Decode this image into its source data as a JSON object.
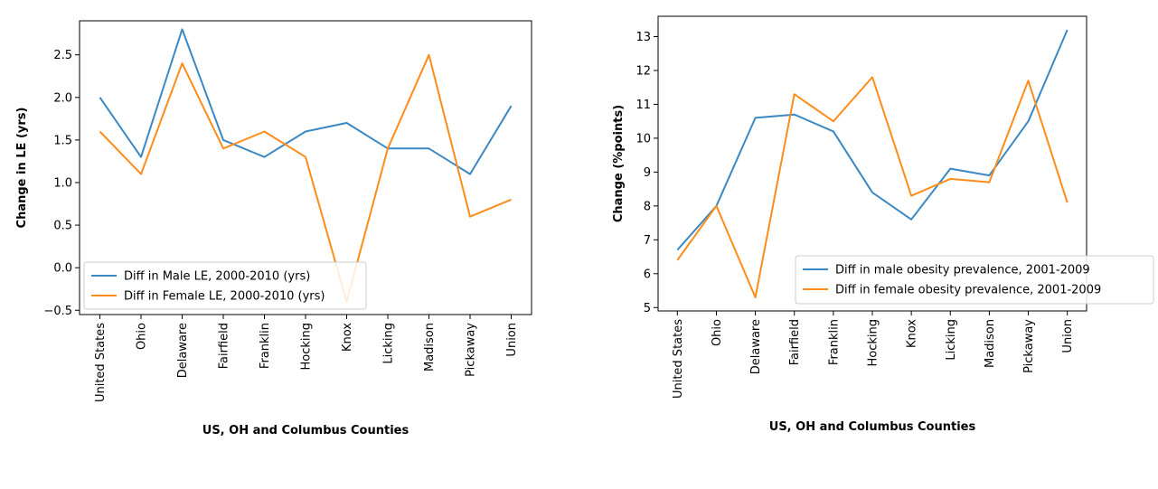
{
  "chart_data": [
    {
      "type": "line",
      "categories": [
        "United States",
        "Ohio",
        "Delaware",
        "Fairfield",
        "Franklin",
        "Hocking",
        "Knox",
        "Licking",
        "Madison",
        "Pickaway",
        "Union"
      ],
      "series": [
        {
          "name": "Diff in Male LE, 2000-2010 (yrs)",
          "color": "#3b88c3",
          "values": [
            2.0,
            1.3,
            2.8,
            1.5,
            1.3,
            1.6,
            1.7,
            1.4,
            1.4,
            1.1,
            1.9
          ]
        },
        {
          "name": "Diff in Female LE, 2000-2010 (yrs)",
          "color": "#ff8c1a",
          "values": [
            1.6,
            1.1,
            2.4,
            1.4,
            1.6,
            1.3,
            -0.4,
            1.4,
            2.5,
            0.6,
            0.8
          ]
        }
      ],
      "xlabel": "US, OH and Columbus Counties",
      "ylabel": "Change in LE (yrs)",
      "ylim": [
        -0.55,
        2.9
      ],
      "yticks": [
        -0.5,
        0.0,
        0.5,
        1.0,
        1.5,
        2.0,
        2.5
      ],
      "ytick_labels": [
        "−0.5",
        "0.0",
        "0.5",
        "1.0",
        "1.5",
        "2.0",
        "2.5"
      ],
      "grid": false,
      "legend": "lower-left"
    },
    {
      "type": "line",
      "categories": [
        "United States",
        "Ohio",
        "Delaware",
        "Fairfield",
        "Franklin",
        "Hocking",
        "Knox",
        "Licking",
        "Madison",
        "Pickaway",
        "Union"
      ],
      "series": [
        {
          "name": "Diff in male obesity prevalence, 2001-2009",
          "color": "#3b88c3",
          "values": [
            6.7,
            8.0,
            10.6,
            10.7,
            10.2,
            8.4,
            7.6,
            9.1,
            8.9,
            10.5,
            13.2
          ]
        },
        {
          "name": "Diff in female obesity prevalence, 2001-2009",
          "color": "#ff8c1a",
          "values": [
            6.4,
            8.0,
            5.3,
            11.3,
            10.5,
            11.8,
            8.3,
            8.8,
            8.7,
            11.7,
            8.1
          ]
        }
      ],
      "xlabel": "US, OH and Columbus Counties",
      "ylabel": "Change (%points)",
      "ylim": [
        4.9,
        13.6
      ],
      "yticks": [
        5,
        6,
        7,
        8,
        9,
        10,
        11,
        12,
        13
      ],
      "ytick_labels": [
        "5",
        "6",
        "7",
        "8",
        "9",
        "10",
        "11",
        "12",
        "13"
      ],
      "grid": false,
      "legend": "lower-right"
    }
  ]
}
